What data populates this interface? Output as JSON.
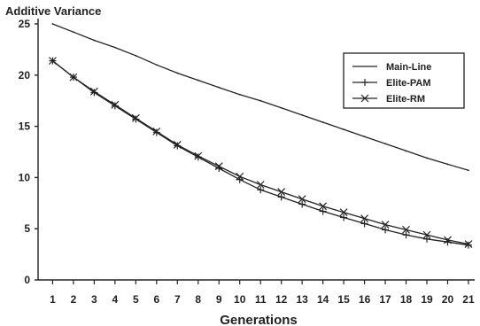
{
  "chart_data": {
    "type": "line",
    "title": "Additive Variance",
    "xlabel": "Generations",
    "ylabel": "",
    "x": [
      1,
      2,
      3,
      4,
      5,
      6,
      7,
      8,
      9,
      10,
      11,
      12,
      13,
      14,
      15,
      16,
      17,
      18,
      19,
      20,
      21
    ],
    "xlim": [
      0.3,
      21.3
    ],
    "ylim": [
      0,
      25
    ],
    "yticks": [
      0,
      5,
      10,
      15,
      20,
      25
    ],
    "grid": false,
    "legend_position": "top-right",
    "series": [
      {
        "name": "Main-Line",
        "marker": "none",
        "values": [
          25.0,
          24.2,
          23.4,
          22.7,
          21.9,
          21.0,
          20.2,
          19.5,
          18.8,
          18.1,
          17.5,
          16.8,
          16.1,
          15.4,
          14.7,
          14.0,
          13.3,
          12.6,
          11.9,
          11.3,
          10.7
        ]
      },
      {
        "name": "Elite-PAM",
        "marker": "plus",
        "values": [
          21.4,
          19.8,
          18.3,
          17.0,
          15.7,
          14.4,
          13.1,
          12.0,
          10.9,
          9.8,
          8.8,
          8.1,
          7.4,
          6.7,
          6.1,
          5.5,
          4.9,
          4.4,
          4.0,
          3.7,
          3.4
        ]
      },
      {
        "name": "Elite-RM",
        "marker": "x",
        "values": [
          21.4,
          19.8,
          18.4,
          17.1,
          15.8,
          14.5,
          13.2,
          12.1,
          11.1,
          10.1,
          9.3,
          8.6,
          7.9,
          7.2,
          6.6,
          6.0,
          5.4,
          4.9,
          4.4,
          3.9,
          3.5
        ]
      }
    ]
  }
}
